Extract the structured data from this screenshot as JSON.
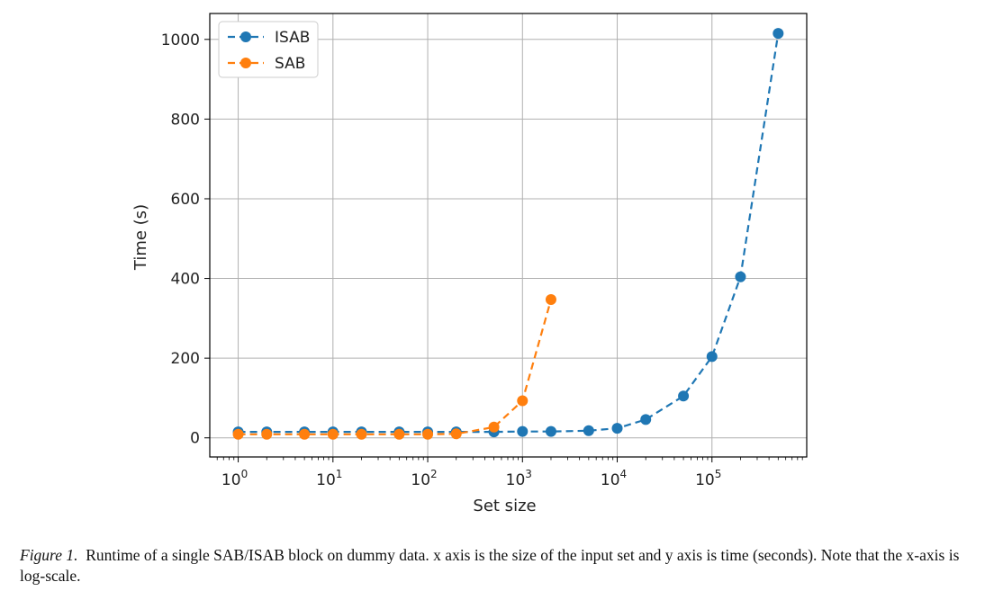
{
  "chart_data": {
    "type": "line",
    "xscale": "log",
    "xlim_exp": [
      -0.3,
      6.0
    ],
    "ylim": [
      -48,
      1065
    ],
    "xlabel": "Set size",
    "ylabel": "Time (s)",
    "yticks": [
      "0",
      "200",
      "400",
      "600",
      "800",
      "1000"
    ],
    "xticks": [
      {
        "base": "10",
        "exp": "0"
      },
      {
        "base": "10",
        "exp": "1"
      },
      {
        "base": "10",
        "exp": "2"
      },
      {
        "base": "10",
        "exp": "3"
      },
      {
        "base": "10",
        "exp": "4"
      },
      {
        "base": "10",
        "exp": "5"
      }
    ],
    "grid": true,
    "legend_position": "top-left",
    "series": [
      {
        "name": "ISAB",
        "color": "#1f77b4",
        "x": [
          1,
          2,
          5,
          10,
          20,
          50,
          100,
          200,
          500,
          1000,
          2000,
          5000,
          10000,
          20000,
          50000,
          100000,
          200000,
          500000
        ],
        "y": [
          15,
          15,
          15,
          15,
          15,
          15,
          15,
          15,
          15,
          16,
          16,
          18,
          24,
          46,
          105,
          204,
          404,
          1015
        ]
      },
      {
        "name": "SAB",
        "color": "#ff7f0e",
        "x": [
          1,
          2,
          5,
          10,
          20,
          50,
          100,
          200,
          500,
          1000,
          2000
        ],
        "y": [
          9,
          9,
          9,
          9,
          9,
          9,
          9,
          10,
          27,
          93,
          347
        ]
      }
    ]
  },
  "caption": {
    "label": "Figure 1.",
    "text": "Runtime of a single SAB/ISAB block on dummy data. x axis is the size of the input set and y axis is time (seconds). Note that the x-axis is log-scale."
  }
}
